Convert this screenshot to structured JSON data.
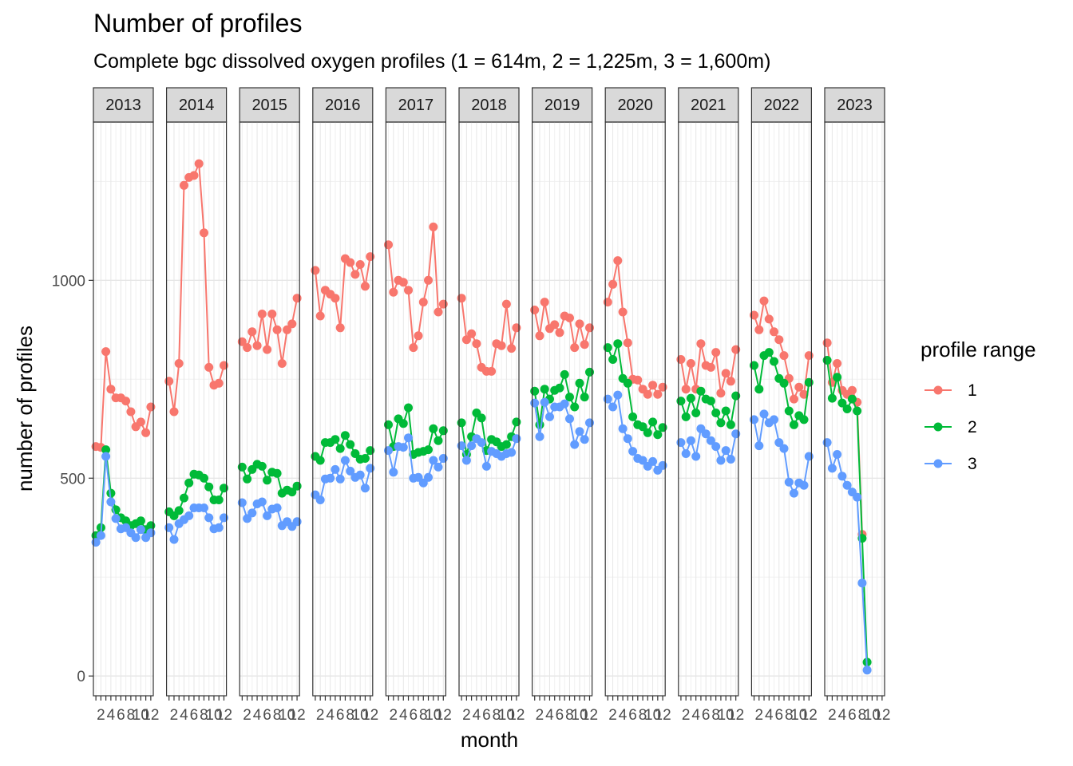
{
  "chart_data": {
    "type": "line",
    "title": "Number of profiles",
    "subtitle": "Complete bgc dissolved oxygen profiles (1 = 614m, 2 = 1,225m, 3 = 1,600m)",
    "xlabel": "month",
    "ylabel": "number of profiles",
    "x_ticks": [
      "2",
      "4",
      "6",
      "8",
      "10",
      "12"
    ],
    "y_ticks": [
      0,
      500,
      1000
    ],
    "ylim": [
      -50,
      1400
    ],
    "xlim": [
      0.5,
      12.5
    ],
    "grid": true,
    "facet_by": "year",
    "legend": {
      "title": "profile range",
      "position": "right"
    },
    "series_colors": {
      "1": "#F8766D",
      "2": "#00BA38",
      "3": "#619CFF"
    },
    "panels": [
      {
        "year": "2013",
        "series": [
          {
            "name": "1",
            "values": [
              580,
              578,
              820,
              725,
              703,
              703,
              695,
              668,
              630,
              642,
              615,
              680
            ]
          },
          {
            "name": "2",
            "values": [
              355,
              375,
              572,
              462,
              420,
              400,
              392,
              380,
              385,
              392,
              370,
              380
            ]
          },
          {
            "name": "3",
            "values": [
              338,
              355,
              555,
              440,
              398,
              372,
              375,
              362,
              350,
              370,
              350,
              362
            ]
          }
        ]
      },
      {
        "year": "2014",
        "series": [
          {
            "name": "1",
            "values": [
              745,
              668,
              790,
              1240,
              1260,
              1265,
              1295,
              1120,
              780,
              735,
              740,
              785
            ]
          },
          {
            "name": "2",
            "values": [
              415,
              405,
              418,
              450,
              488,
              510,
              508,
              500,
              478,
              445,
              445,
              475
            ]
          },
          {
            "name": "3",
            "values": [
              375,
              345,
              385,
              395,
              405,
              425,
              425,
              425,
              400,
              372,
              375,
              400
            ]
          }
        ]
      },
      {
        "year": "2015",
        "series": [
          {
            "name": "1",
            "values": [
              845,
              830,
              870,
              835,
              915,
              825,
              915,
              875,
              790,
              875,
              890,
              955
            ]
          },
          {
            "name": "2",
            "values": [
              528,
              498,
              522,
              535,
              530,
              495,
              515,
              512,
              462,
              470,
              465,
              480
            ]
          },
          {
            "name": "3",
            "values": [
              438,
              398,
              412,
              435,
              440,
              405,
              422,
              425,
              380,
              390,
              378,
              390
            ]
          }
        ]
      },
      {
        "year": "2016",
        "series": [
          {
            "name": "1",
            "values": [
              1025,
              910,
              975,
              965,
              955,
              880,
              1055,
              1045,
              1015,
              1040,
              985,
              1060
            ]
          },
          {
            "name": "2",
            "values": [
              555,
              545,
              590,
              590,
              598,
              575,
              608,
              585,
              562,
              548,
              550,
              570
            ]
          },
          {
            "name": "3",
            "values": [
              458,
              445,
              498,
              500,
              522,
              498,
              545,
              518,
              502,
              508,
              475,
              525
            ]
          }
        ]
      },
      {
        "year": "2017",
        "series": [
          {
            "name": "1",
            "values": [
              1090,
              970,
              1000,
              995,
              975,
              830,
              860,
              945,
              1000,
              1135,
              920,
              940
            ]
          },
          {
            "name": "2",
            "values": [
              635,
              580,
              650,
              638,
              678,
              560,
              565,
              568,
              572,
              625,
              595,
              620
            ]
          },
          {
            "name": "3",
            "values": [
              570,
              515,
              580,
              578,
              602,
              500,
              502,
              488,
              502,
              545,
              528,
              550
            ]
          }
        ]
      },
      {
        "year": "2018",
        "series": [
          {
            "name": "1",
            "values": [
              955,
              850,
              865,
              840,
              780,
              770,
              770,
              840,
              835,
              940,
              828,
              880
            ]
          },
          {
            "name": "2",
            "values": [
              640,
              560,
              605,
              665,
              652,
              570,
              598,
              592,
              580,
              585,
              605,
              642
            ]
          },
          {
            "name": "3",
            "values": [
              582,
              545,
              582,
              600,
              590,
              530,
              568,
              562,
              555,
              562,
              565,
              600
            ]
          }
        ]
      },
      {
        "year": "2019",
        "series": [
          {
            "name": "1",
            "values": [
              925,
              860,
              945,
              878,
              888,
              868,
              910,
              905,
              830,
              890,
              838,
              880
            ]
          },
          {
            "name": "2",
            "values": [
              720,
              635,
              725,
              700,
              722,
              728,
              762,
              705,
              680,
              740,
              705,
              768
            ]
          },
          {
            "name": "3",
            "values": [
              690,
              605,
              692,
              655,
              680,
              680,
              688,
              650,
              585,
              618,
              598,
              640
            ]
          }
        ]
      },
      {
        "year": "2020",
        "series": [
          {
            "name": "1",
            "values": [
              945,
              990,
              1050,
              920,
              842,
              750,
              748,
              725,
              712,
              735,
              712,
              730
            ]
          },
          {
            "name": "2",
            "values": [
              830,
              800,
              840,
              752,
              740,
              655,
              635,
              630,
              615,
              642,
              610,
              628
            ]
          },
          {
            "name": "3",
            "values": [
              700,
              680,
              710,
              625,
              600,
              568,
              550,
              545,
              530,
              542,
              520,
              532
            ]
          }
        ]
      },
      {
        "year": "2021",
        "series": [
          {
            "name": "1",
            "values": [
              800,
              725,
              790,
              725,
              840,
              785,
              780,
              818,
              715,
              765,
              745,
              825
            ]
          },
          {
            "name": "2",
            "values": [
              695,
              655,
              702,
              665,
              720,
              700,
              695,
              665,
              640,
              670,
              635,
              708
            ]
          },
          {
            "name": "3",
            "values": [
              590,
              562,
              595,
              555,
              625,
              612,
              595,
              580,
              545,
              570,
              548,
              612
            ]
          }
        ]
      },
      {
        "year": "2022",
        "series": [
          {
            "name": "1",
            "values": [
              912,
              875,
              948,
              902,
              870,
              850,
              810,
              752,
              700,
              730,
              712,
              810
            ]
          },
          {
            "name": "2",
            "values": [
              785,
              725,
              810,
              818,
              795,
              752,
              740,
              670,
              635,
              658,
              648,
              742
            ]
          },
          {
            "name": "3",
            "values": [
              648,
              582,
              662,
              640,
              648,
              590,
              575,
              490,
              462,
              488,
              482,
              555
            ]
          }
        ]
      },
      {
        "year": "2023",
        "series": [
          {
            "name": "1",
            "values": [
              842,
              742,
              790,
              722,
              712,
              722,
              692,
              358,
              null,
              null,
              null,
              null
            ]
          },
          {
            "name": "2",
            "values": [
              798,
              702,
              755,
              690,
              675,
              700,
              670,
              348,
              35,
              null,
              null,
              null
            ]
          },
          {
            "name": "3",
            "values": [
              590,
              525,
              560,
              505,
              482,
              465,
              452,
              235,
              15,
              null,
              null,
              null
            ]
          }
        ]
      }
    ]
  }
}
